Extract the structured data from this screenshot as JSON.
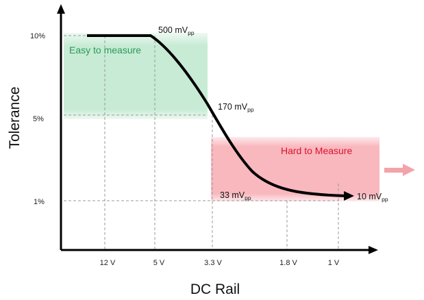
{
  "chart_data": {
    "type": "line",
    "xlabel": "DC Rail",
    "ylabel": "Tolerance",
    "x_ticks": [
      "12 V",
      "5 V",
      "3.3 V",
      "1.8 V",
      "1 V"
    ],
    "y_ticks": [
      "10%",
      "5%",
      "1%"
    ],
    "regions": [
      {
        "label": "Easy to measure",
        "color": "#2a9a58",
        "fill": "#c6ead4"
      },
      {
        "label": "Hard to Measure",
        "color": "#e0102a",
        "fill": "#f7b9bf"
      }
    ],
    "annotations": [
      {
        "main": "500 mV",
        "sub": "pp"
      },
      {
        "main": "170 mV",
        "sub": "pp"
      },
      {
        "main": "33 mV",
        "sub": "pp"
      },
      {
        "main": "10 mV",
        "sub": "pp"
      }
    ],
    "colors": {
      "curve": "#000000",
      "axis": "#000000",
      "guide": "#9a9a9a",
      "arrow": "#f4a3ab"
    }
  }
}
